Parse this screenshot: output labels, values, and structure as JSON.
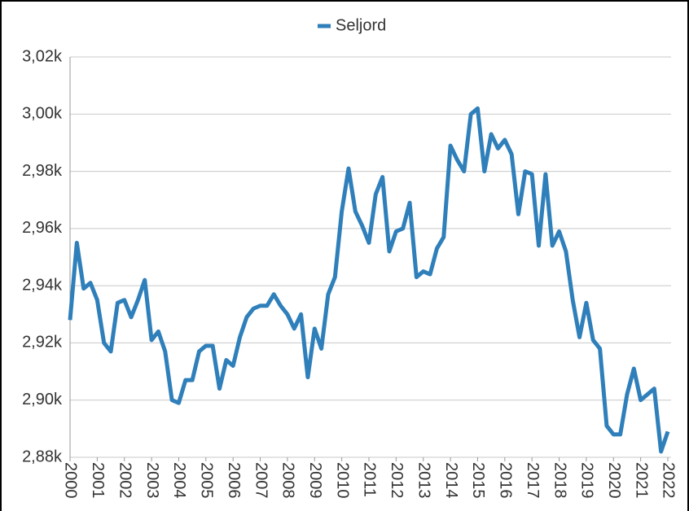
{
  "chart_data": {
    "type": "line",
    "legend": "top",
    "grid": true,
    "x": [
      2000,
      2000.25,
      2000.5,
      2000.75,
      2001,
      2001.25,
      2001.5,
      2001.75,
      2002,
      2002.25,
      2002.5,
      2002.75,
      2003,
      2003.25,
      2003.5,
      2003.75,
      2004,
      2004.25,
      2004.5,
      2004.75,
      2005,
      2005.25,
      2005.5,
      2005.75,
      2006,
      2006.25,
      2006.5,
      2006.75,
      2007,
      2007.25,
      2007.5,
      2007.75,
      2008,
      2008.25,
      2008.5,
      2008.75,
      2009,
      2009.25,
      2009.5,
      2009.75,
      2010,
      2010.25,
      2010.5,
      2010.75,
      2011,
      2011.25,
      2011.5,
      2011.75,
      2012,
      2012.25,
      2012.5,
      2012.75,
      2013,
      2013.25,
      2013.5,
      2013.75,
      2014,
      2014.25,
      2014.5,
      2014.75,
      2015,
      2015.25,
      2015.5,
      2015.75,
      2016,
      2016.25,
      2016.5,
      2016.75,
      2017,
      2017.25,
      2017.5,
      2017.75,
      2018,
      2018.25,
      2018.5,
      2018.75,
      2019,
      2019.25,
      2019.5,
      2019.75,
      2020,
      2020.25,
      2020.5,
      2020.75,
      2021,
      2021.25,
      2021.5,
      2021.75,
      2022
    ],
    "series": [
      {
        "name": "Seljord",
        "color": "#2f7fba",
        "values": [
          2928,
          2955,
          2939,
          2941,
          2935,
          2920,
          2917,
          2934,
          2935,
          2929,
          2935,
          2942,
          2921,
          2924,
          2917,
          2900,
          2899,
          2907,
          2907,
          2917,
          2919,
          2919,
          2904,
          2914,
          2912,
          2922,
          2929,
          2932,
          2933,
          2933,
          2937,
          2933,
          2930,
          2925,
          2930,
          2908,
          2925,
          2918,
          2937,
          2943,
          2966,
          2981,
          2966,
          2961,
          2955,
          2972,
          2978,
          2952,
          2959,
          2960,
          2969,
          2943,
          2945,
          2944,
          2953,
          2957,
          2989,
          2984,
          2980,
          3000,
          3002,
          2980,
          2993,
          2988,
          2991,
          2986,
          2965,
          2980,
          2979,
          2954,
          2979,
          2954,
          2959,
          2952,
          2935,
          2922,
          2934,
          2921,
          2918,
          2891,
          2888,
          2888,
          2902,
          2911,
          2900,
          2902,
          2904,
          2882,
          2889
        ]
      }
    ],
    "xlim": [
      2000,
      2022
    ],
    "xticks": [
      2000,
      2001,
      2002,
      2003,
      2004,
      2005,
      2006,
      2007,
      2008,
      2009,
      2010,
      2011,
      2012,
      2013,
      2014,
      2015,
      2016,
      2017,
      2018,
      2019,
      2020,
      2021,
      2022
    ],
    "ylim": [
      2880,
      3020
    ],
    "yticks": [
      {
        "value": 2880,
        "label": "2,88k"
      },
      {
        "value": 2900,
        "label": "2,90k"
      },
      {
        "value": 2920,
        "label": "2,92k"
      },
      {
        "value": 2940,
        "label": "2,94k"
      },
      {
        "value": 2960,
        "label": "2,96k"
      },
      {
        "value": 2980,
        "label": "2,98k"
      },
      {
        "value": 3000,
        "label": "3,00k"
      },
      {
        "value": 3020,
        "label": "3,02k"
      }
    ]
  }
}
